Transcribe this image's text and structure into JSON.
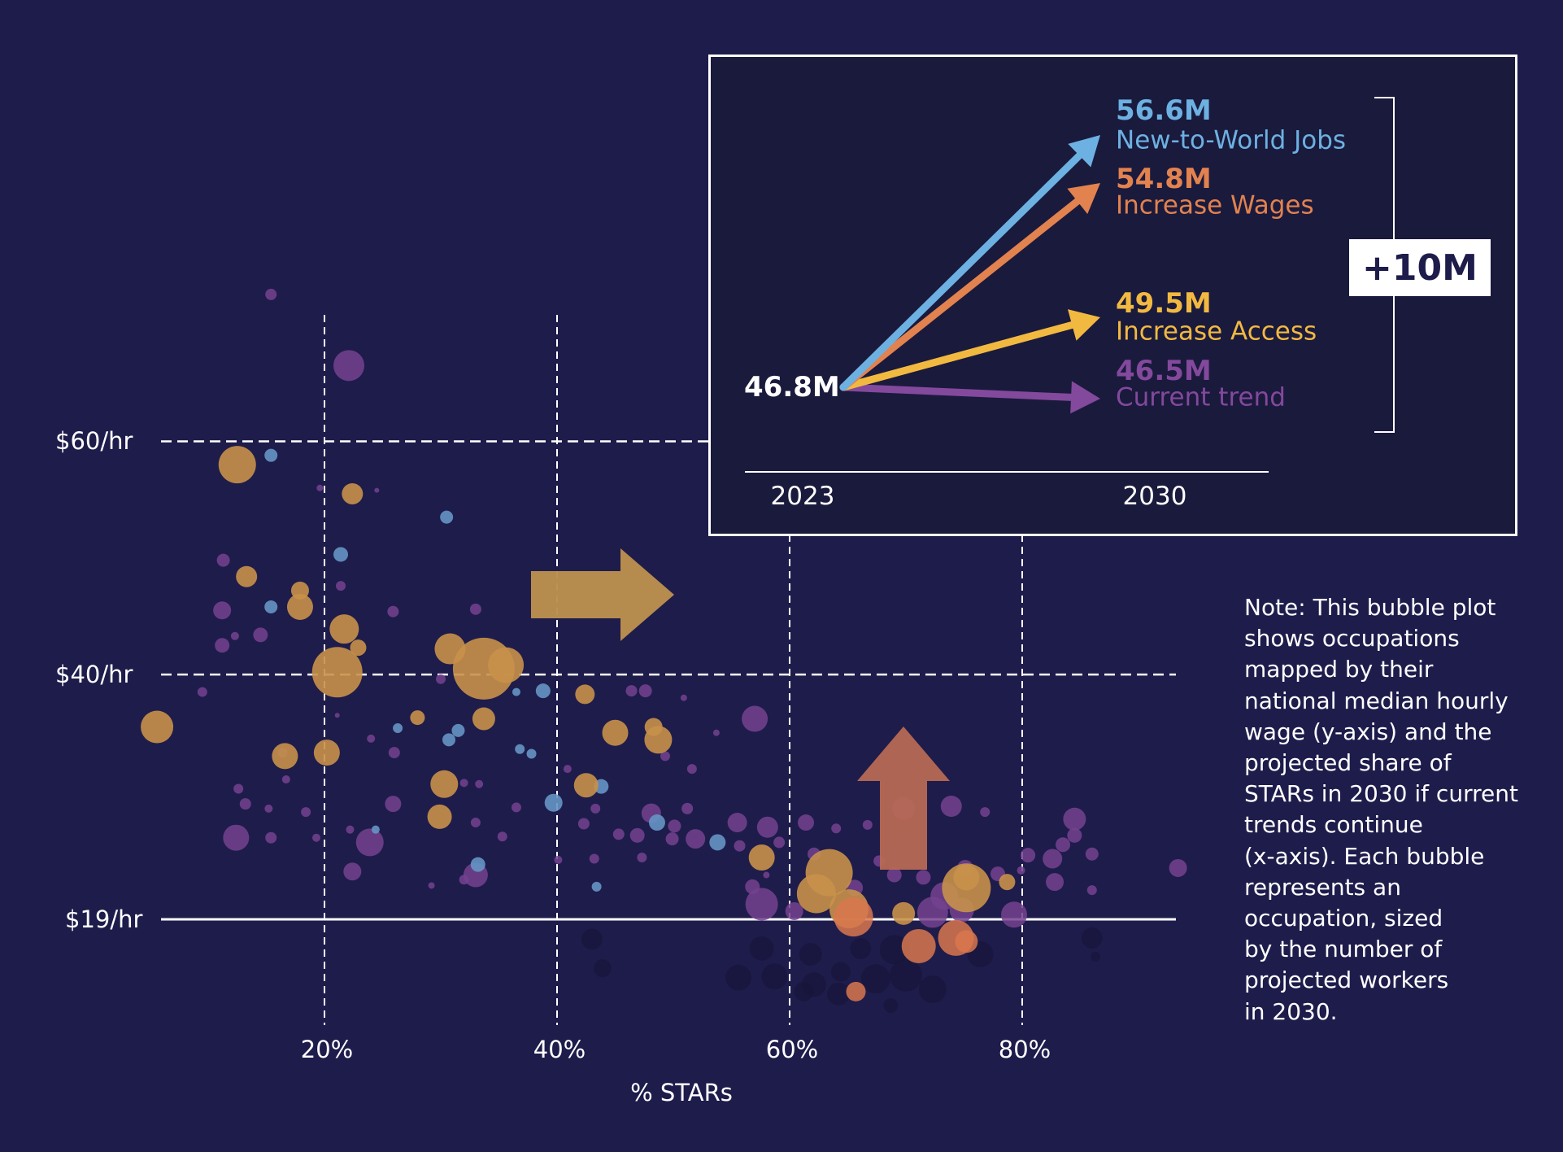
{
  "chart_data": {
    "type": "scatter",
    "title": "",
    "xlabel": "% STARs",
    "ylabel": "",
    "x_ticks": [
      {
        "value": 20,
        "label": "20%"
      },
      {
        "value": 40,
        "label": "40%"
      },
      {
        "value": 60,
        "label": "60%"
      },
      {
        "value": 80,
        "label": "80%"
      }
    ],
    "y_ticks": [
      {
        "value": 60,
        "label": "$60/hr",
        "style": "dashed"
      },
      {
        "value": 40,
        "label": "$40/hr",
        "style": "dashed"
      },
      {
        "value": 19,
        "label": "$19/hr",
        "style": "solid"
      }
    ],
    "xlim": [
      6,
      94
    ],
    "ylim": [
      9,
      82
    ],
    "grid": true,
    "series_colors": {
      "yellow": "#c8914a",
      "purple": "#74428f",
      "blue": "#6595c4",
      "orange": "#d9774e",
      "dark": "#151436"
    },
    "bubbles": [
      {
        "x": 15.4,
        "y": 72.6,
        "r": 7,
        "c": "purple"
      },
      {
        "x": 22.1,
        "y": 66.5,
        "r": 19,
        "c": "purple"
      },
      {
        "x": 12.5,
        "y": 58.0,
        "r": 23,
        "c": "yellow"
      },
      {
        "x": 15.4,
        "y": 58.8,
        "r": 8,
        "c": "blue"
      },
      {
        "x": 22.4,
        "y": 55.5,
        "r": 13,
        "c": "yellow"
      },
      {
        "x": 19.6,
        "y": 56.0,
        "r": 4,
        "c": "purple"
      },
      {
        "x": 24.5,
        "y": 55.8,
        "r": 3,
        "c": "purple"
      },
      {
        "x": 30.5,
        "y": 53.5,
        "r": 8,
        "c": "blue"
      },
      {
        "x": 21.4,
        "y": 50.3,
        "r": 9,
        "c": "blue"
      },
      {
        "x": 11.3,
        "y": 49.8,
        "r": 8,
        "c": "purple"
      },
      {
        "x": 13.3,
        "y": 48.4,
        "r": 13,
        "c": "yellow"
      },
      {
        "x": 17.9,
        "y": 47.2,
        "r": 11,
        "c": "yellow"
      },
      {
        "x": 21.4,
        "y": 47.6,
        "r": 6,
        "c": "purple"
      },
      {
        "x": 15.4,
        "y": 45.8,
        "r": 8,
        "c": "blue"
      },
      {
        "x": 11.2,
        "y": 45.5,
        "r": 11,
        "c": "purple"
      },
      {
        "x": 17.9,
        "y": 45.8,
        "r": 16,
        "c": "yellow"
      },
      {
        "x": 25.9,
        "y": 45.4,
        "r": 7,
        "c": "purple"
      },
      {
        "x": 33.0,
        "y": 45.6,
        "r": 7,
        "c": "purple"
      },
      {
        "x": 12.3,
        "y": 43.3,
        "r": 5,
        "c": "purple"
      },
      {
        "x": 21.7,
        "y": 43.9,
        "r": 18,
        "c": "yellow"
      },
      {
        "x": 14.5,
        "y": 43.4,
        "r": 9,
        "c": "purple"
      },
      {
        "x": 11.2,
        "y": 42.5,
        "r": 9,
        "c": "purple"
      },
      {
        "x": 22.9,
        "y": 42.3,
        "r": 10,
        "c": "yellow"
      },
      {
        "x": 30.8,
        "y": 42.2,
        "r": 19,
        "c": "yellow"
      },
      {
        "x": 21.1,
        "y": 40.2,
        "r": 31,
        "c": "yellow"
      },
      {
        "x": 33.7,
        "y": 40.5,
        "r": 38,
        "c": "yellow"
      },
      {
        "x": 35.6,
        "y": 40.8,
        "r": 22,
        "c": "yellow"
      },
      {
        "x": 30.0,
        "y": 39.6,
        "r": 6,
        "c": "purple"
      },
      {
        "x": 9.5,
        "y": 38.5,
        "r": 6,
        "c": "purple"
      },
      {
        "x": 36.5,
        "y": 38.5,
        "r": 5,
        "c": "blue"
      },
      {
        "x": 38.8,
        "y": 38.6,
        "r": 9,
        "c": "blue"
      },
      {
        "x": 42.4,
        "y": 38.3,
        "r": 12,
        "c": "yellow"
      },
      {
        "x": 46.4,
        "y": 38.6,
        "r": 7,
        "c": "purple"
      },
      {
        "x": 47.6,
        "y": 38.6,
        "r": 8,
        "c": "purple"
      },
      {
        "x": 50.9,
        "y": 38.0,
        "r": 4,
        "c": "purple"
      },
      {
        "x": 28.0,
        "y": 36.3,
        "r": 9,
        "c": "yellow"
      },
      {
        "x": 21.1,
        "y": 36.5,
        "r": 3,
        "c": "purple"
      },
      {
        "x": 33.7,
        "y": 36.2,
        "r": 14,
        "c": "yellow"
      },
      {
        "x": 5.6,
        "y": 35.5,
        "r": 20,
        "c": "yellow"
      },
      {
        "x": 26.3,
        "y": 35.4,
        "r": 6,
        "c": "blue"
      },
      {
        "x": 31.5,
        "y": 35.2,
        "r": 8,
        "c": "blue"
      },
      {
        "x": 30.7,
        "y": 34.4,
        "r": 8,
        "c": "blue"
      },
      {
        "x": 45.0,
        "y": 35.0,
        "r": 16,
        "c": "yellow"
      },
      {
        "x": 57.0,
        "y": 36.2,
        "r": 16,
        "c": "purple"
      },
      {
        "x": 48.3,
        "y": 35.5,
        "r": 11,
        "c": "yellow"
      },
      {
        "x": 48.7,
        "y": 34.4,
        "r": 17,
        "c": "yellow"
      },
      {
        "x": 53.7,
        "y": 35.0,
        "r": 4,
        "c": "purple"
      },
      {
        "x": 24.0,
        "y": 34.5,
        "r": 5,
        "c": "purple"
      },
      {
        "x": 16.6,
        "y": 33.0,
        "r": 16,
        "c": "yellow"
      },
      {
        "x": 20.2,
        "y": 33.3,
        "r": 16,
        "c": "yellow"
      },
      {
        "x": 36.8,
        "y": 33.6,
        "r": 6,
        "c": "blue"
      },
      {
        "x": 37.8,
        "y": 33.2,
        "r": 6,
        "c": "blue"
      },
      {
        "x": 26.0,
        "y": 33.3,
        "r": 7,
        "c": "purple"
      },
      {
        "x": 16.4,
        "y": 33.3,
        "r": 6,
        "c": "purple"
      },
      {
        "x": 49.3,
        "y": 33.0,
        "r": 6,
        "c": "purple"
      },
      {
        "x": 51.6,
        "y": 31.9,
        "r": 6,
        "c": "purple"
      },
      {
        "x": 30.3,
        "y": 30.6,
        "r": 17,
        "c": "yellow"
      },
      {
        "x": 42.5,
        "y": 30.5,
        "r": 15,
        "c": "yellow"
      },
      {
        "x": 43.8,
        "y": 30.4,
        "r": 9,
        "c": "blue"
      },
      {
        "x": 40.9,
        "y": 31.9,
        "r": 5,
        "c": "purple"
      },
      {
        "x": 12.6,
        "y": 30.2,
        "r": 6,
        "c": "purple"
      },
      {
        "x": 16.7,
        "y": 31.0,
        "r": 5,
        "c": "purple"
      },
      {
        "x": 32.0,
        "y": 30.7,
        "r": 5,
        "c": "purple"
      },
      {
        "x": 33.3,
        "y": 30.6,
        "r": 5,
        "c": "purple"
      },
      {
        "x": 13.2,
        "y": 28.9,
        "r": 7,
        "c": "purple"
      },
      {
        "x": 25.9,
        "y": 28.9,
        "r": 10,
        "c": "purple"
      },
      {
        "x": 15.2,
        "y": 28.5,
        "r": 5,
        "c": "purple"
      },
      {
        "x": 18.4,
        "y": 28.2,
        "r": 6,
        "c": "purple"
      },
      {
        "x": 36.5,
        "y": 28.6,
        "r": 6,
        "c": "purple"
      },
      {
        "x": 39.7,
        "y": 29.0,
        "r": 11,
        "c": "blue"
      },
      {
        "x": 43.3,
        "y": 28.5,
        "r": 6,
        "c": "purple"
      },
      {
        "x": 29.9,
        "y": 27.8,
        "r": 15,
        "c": "yellow"
      },
      {
        "x": 51.2,
        "y": 28.5,
        "r": 7,
        "c": "purple"
      },
      {
        "x": 48.1,
        "y": 28.1,
        "r": 12,
        "c": "purple"
      },
      {
        "x": 33.0,
        "y": 27.3,
        "r": 6,
        "c": "purple"
      },
      {
        "x": 50.1,
        "y": 27.0,
        "r": 8,
        "c": "purple"
      },
      {
        "x": 48.6,
        "y": 27.3,
        "r": 10,
        "c": "blue"
      },
      {
        "x": 55.5,
        "y": 27.3,
        "r": 12,
        "c": "purple"
      },
      {
        "x": 58.1,
        "y": 26.9,
        "r": 13,
        "c": "purple"
      },
      {
        "x": 61.4,
        "y": 27.3,
        "r": 10,
        "c": "purple"
      },
      {
        "x": 64.0,
        "y": 26.8,
        "r": 6,
        "c": "purple"
      },
      {
        "x": 66.7,
        "y": 27.1,
        "r": 6,
        "c": "purple"
      },
      {
        "x": 69.8,
        "y": 28.5,
        "r": 14,
        "c": "purple"
      },
      {
        "x": 73.9,
        "y": 28.7,
        "r": 13,
        "c": "purple"
      },
      {
        "x": 76.8,
        "y": 28.2,
        "r": 6,
        "c": "purple"
      },
      {
        "x": 42.3,
        "y": 27.2,
        "r": 7,
        "c": "purple"
      },
      {
        "x": 45.3,
        "y": 26.3,
        "r": 7,
        "c": "purple"
      },
      {
        "x": 22.2,
        "y": 26.7,
        "r": 5,
        "c": "purple"
      },
      {
        "x": 12.4,
        "y": 26.0,
        "r": 16,
        "c": "purple"
      },
      {
        "x": 15.4,
        "y": 26.0,
        "r": 7,
        "c": "purple"
      },
      {
        "x": 24.4,
        "y": 26.7,
        "r": 5,
        "c": "blue"
      },
      {
        "x": 19.3,
        "y": 26.0,
        "r": 5,
        "c": "purple"
      },
      {
        "x": 23.9,
        "y": 25.6,
        "r": 17,
        "c": "purple"
      },
      {
        "x": 35.3,
        "y": 26.1,
        "r": 6,
        "c": "purple"
      },
      {
        "x": 46.9,
        "y": 26.2,
        "r": 9,
        "c": "purple"
      },
      {
        "x": 49.9,
        "y": 25.9,
        "r": 8,
        "c": "purple"
      },
      {
        "x": 51.9,
        "y": 25.9,
        "r": 12,
        "c": "purple"
      },
      {
        "x": 53.8,
        "y": 25.6,
        "r": 10,
        "c": "blue"
      },
      {
        "x": 55.7,
        "y": 25.3,
        "r": 7,
        "c": "purple"
      },
      {
        "x": 59.1,
        "y": 25.6,
        "r": 7,
        "c": "purple"
      },
      {
        "x": 62.1,
        "y": 24.6,
        "r": 8,
        "c": "purple"
      },
      {
        "x": 57.6,
        "y": 24.3,
        "r": 16,
        "c": "yellow"
      },
      {
        "x": 43.2,
        "y": 24.2,
        "r": 6,
        "c": "purple"
      },
      {
        "x": 40.1,
        "y": 24.1,
        "r": 5,
        "c": "purple"
      },
      {
        "x": 47.3,
        "y": 24.3,
        "r": 6,
        "c": "purple"
      },
      {
        "x": 33.2,
        "y": 23.7,
        "r": 9,
        "c": "blue"
      },
      {
        "x": 58.0,
        "y": 22.8,
        "r": 4,
        "c": "purple"
      },
      {
        "x": 69.0,
        "y": 22.8,
        "r": 9,
        "c": "purple"
      },
      {
        "x": 63.4,
        "y": 23.0,
        "r": 29,
        "c": "yellow"
      },
      {
        "x": 65.6,
        "y": 21.7,
        "r": 10,
        "c": "purple"
      },
      {
        "x": 67.7,
        "y": 24.0,
        "r": 7,
        "c": "purple"
      },
      {
        "x": 71.5,
        "y": 22.6,
        "r": 9,
        "c": "purple"
      },
      {
        "x": 75.1,
        "y": 23.4,
        "r": 10,
        "c": "purple"
      },
      {
        "x": 77.9,
        "y": 22.9,
        "r": 9,
        "c": "purple"
      },
      {
        "x": 80.5,
        "y": 24.5,
        "r": 9,
        "c": "purple"
      },
      {
        "x": 82.6,
        "y": 24.2,
        "r": 12,
        "c": "purple"
      },
      {
        "x": 83.5,
        "y": 25.4,
        "r": 9,
        "c": "purple"
      },
      {
        "x": 84.5,
        "y": 26.2,
        "r": 9,
        "c": "purple"
      },
      {
        "x": 84.5,
        "y": 27.6,
        "r": 14,
        "c": "purple"
      },
      {
        "x": 86.0,
        "y": 24.6,
        "r": 8,
        "c": "purple"
      },
      {
        "x": 93.4,
        "y": 23.4,
        "r": 11,
        "c": "purple"
      },
      {
        "x": 22.4,
        "y": 23.1,
        "r": 11,
        "c": "purple"
      },
      {
        "x": 33.0,
        "y": 22.8,
        "r": 15,
        "c": "purple"
      },
      {
        "x": 32.0,
        "y": 22.4,
        "r": 6,
        "c": "purple"
      },
      {
        "x": 43.4,
        "y": 21.8,
        "r": 6,
        "c": "blue"
      },
      {
        "x": 29.2,
        "y": 21.9,
        "r": 4,
        "c": "purple"
      },
      {
        "x": 56.8,
        "y": 21.8,
        "r": 9,
        "c": "purple"
      },
      {
        "x": 62.3,
        "y": 21.2,
        "r": 24,
        "c": "yellow"
      },
      {
        "x": 73.3,
        "y": 21.0,
        "r": 17,
        "c": "purple"
      },
      {
        "x": 75.2,
        "y": 21.7,
        "r": 30,
        "c": "yellow"
      },
      {
        "x": 75.2,
        "y": 22.6,
        "r": 16,
        "c": "yellow"
      },
      {
        "x": 78.7,
        "y": 22.2,
        "r": 10,
        "c": "yellow"
      },
      {
        "x": 79.9,
        "y": 23.2,
        "r": 5,
        "c": "purple"
      },
      {
        "x": 82.8,
        "y": 22.2,
        "r": 11,
        "c": "purple"
      },
      {
        "x": 86.0,
        "y": 21.5,
        "r": 6,
        "c": "purple"
      },
      {
        "x": 57.6,
        "y": 20.3,
        "r": 20,
        "c": "purple"
      },
      {
        "x": 60.4,
        "y": 19.7,
        "r": 11,
        "c": "purple"
      },
      {
        "x": 65.1,
        "y": 19.9,
        "r": 24,
        "c": "yellow"
      },
      {
        "x": 65.5,
        "y": 19.2,
        "r": 24,
        "c": "orange"
      },
      {
        "x": 69.8,
        "y": 19.5,
        "r": 14,
        "c": "yellow"
      },
      {
        "x": 72.3,
        "y": 19.6,
        "r": 19,
        "c": "purple"
      },
      {
        "x": 74.8,
        "y": 19.8,
        "r": 15,
        "c": "purple"
      },
      {
        "x": 79.3,
        "y": 19.4,
        "r": 16,
        "c": "purple"
      },
      {
        "x": 71.1,
        "y": 16.7,
        "r": 21,
        "c": "orange"
      },
      {
        "x": 74.3,
        "y": 17.4,
        "r": 22,
        "c": "orange"
      },
      {
        "x": 75.2,
        "y": 17.1,
        "r": 14,
        "c": "orange"
      },
      {
        "x": 65.7,
        "y": 12.8,
        "r": 12,
        "c": "orange"
      },
      {
        "x": 43.0,
        "y": 17.3,
        "r": 13,
        "c": "dark"
      },
      {
        "x": 57.6,
        "y": 16.5,
        "r": 15,
        "c": "dark"
      },
      {
        "x": 61.8,
        "y": 16.0,
        "r": 14,
        "c": "dark"
      },
      {
        "x": 66.1,
        "y": 16.5,
        "r": 13,
        "c": "dark"
      },
      {
        "x": 69.0,
        "y": 16.4,
        "r": 18,
        "c": "dark"
      },
      {
        "x": 76.4,
        "y": 16.0,
        "r": 16,
        "c": "dark"
      },
      {
        "x": 86.0,
        "y": 17.4,
        "r": 13,
        "c": "dark"
      },
      {
        "x": 86.3,
        "y": 15.8,
        "r": 6,
        "c": "dark"
      },
      {
        "x": 43.9,
        "y": 14.8,
        "r": 11,
        "c": "dark"
      },
      {
        "x": 55.6,
        "y": 14.0,
        "r": 16,
        "c": "dark"
      },
      {
        "x": 58.7,
        "y": 14.1,
        "r": 16,
        "c": "dark"
      },
      {
        "x": 62.1,
        "y": 13.4,
        "r": 15,
        "c": "dark"
      },
      {
        "x": 64.4,
        "y": 14.5,
        "r": 12,
        "c": "dark"
      },
      {
        "x": 67.4,
        "y": 13.9,
        "r": 18,
        "c": "dark"
      },
      {
        "x": 70.0,
        "y": 14.2,
        "r": 20,
        "c": "dark"
      },
      {
        "x": 72.3,
        "y": 13.0,
        "r": 17,
        "c": "dark"
      },
      {
        "x": 64.2,
        "y": 12.6,
        "r": 14,
        "c": "dark"
      },
      {
        "x": 61.2,
        "y": 12.8,
        "r": 12,
        "c": "dark"
      },
      {
        "x": 68.7,
        "y": 11.6,
        "r": 9,
        "c": "dark"
      }
    ],
    "annotations": {
      "right_arrow_color": "#bb8f4e",
      "up_arrow_color": "#b96b55"
    },
    "inset": {
      "type": "line",
      "start": {
        "year": "2023",
        "value": 46.8,
        "label": "46.8M"
      },
      "end_year": "2030",
      "scenarios": [
        {
          "name": "New-to-World Jobs",
          "value": 56.6,
          "label": "56.6M",
          "color": "#6db1e2"
        },
        {
          "name": "Increase Wages",
          "value": 54.8,
          "label": "54.8M",
          "color": "#e2824f"
        },
        {
          "name": "Increase Access",
          "value": 49.5,
          "label": "49.5M",
          "color": "#f2b941"
        },
        {
          "name": "Current trend",
          "value": 46.5,
          "label": "46.5M",
          "color": "#83499c"
        }
      ],
      "x_ticks": [
        "2023",
        "2030"
      ],
      "total_label": "+10M"
    }
  },
  "note": "Note: This bubble plot shows occupations mapped by their national median hourly wage (y-axis) and the projected share of STARs in 2030 if current trends continue (x-axis). Each bubble represents an occupation, sized by the number of projected workers in 2030.",
  "note_lines": [
    "Note: This bubble plot",
    "shows occupations",
    "mapped by their",
    "national median hourly",
    "wage (y-axis) and the",
    "projected share of",
    "STARs in 2030 if current",
    "trends continue",
    "(x-axis). Each bubble",
    "represents an",
    "occupation, sized",
    "by the number of",
    "projected workers",
    "in 2030."
  ]
}
